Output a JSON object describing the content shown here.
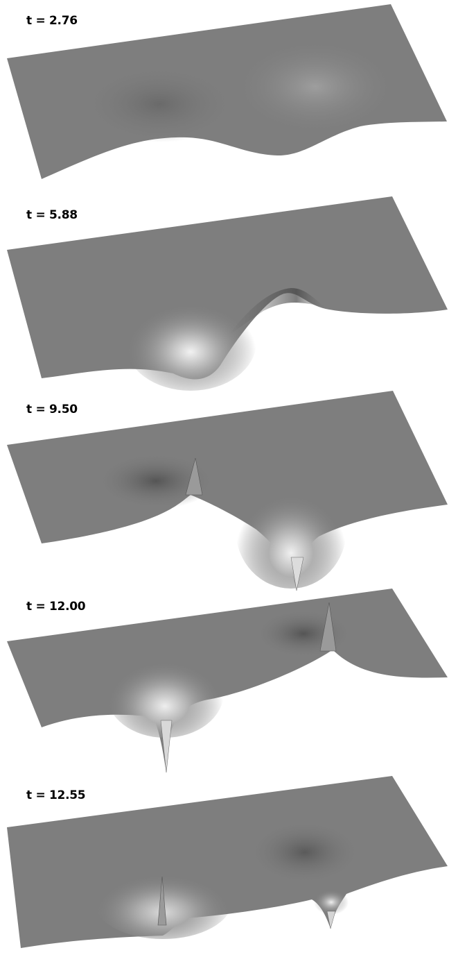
{
  "panels": [
    {
      "label": "t = 2.76"
    },
    {
      "label": "t = 5.88"
    },
    {
      "label": "t = 9.50"
    },
    {
      "label": "t = 12.00"
    },
    {
      "label": "t = 12.55"
    }
  ]
}
